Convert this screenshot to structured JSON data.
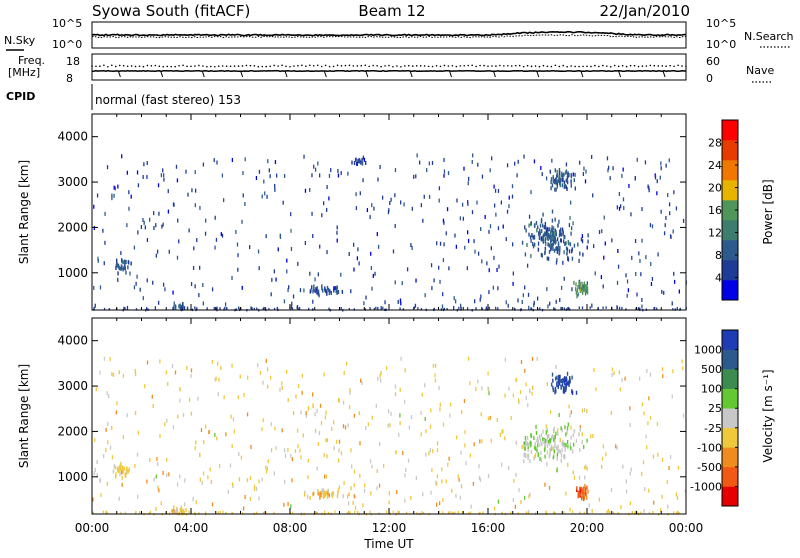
{
  "header": {
    "station": "Syowa South (fitACF)",
    "beam": "Beam 12",
    "date": "22/Jan/2010"
  },
  "nsky_panel": {
    "left_label": "N.Sky",
    "right_label": "N.Search",
    "left_ticks": [
      "10^5",
      "10^0"
    ],
    "right_ticks": [
      "10^5",
      "10^0"
    ]
  },
  "freq_panel": {
    "left_label_line1": "Freq.",
    "left_label_line2": "[MHz]",
    "right_label": "Nave",
    "left_ticks": [
      "18",
      "8"
    ],
    "right_ticks": [
      "60",
      "0"
    ]
  },
  "cpid": {
    "label": "CPID",
    "program": "normal (fast stereo) 153"
  },
  "time_axis": {
    "label": "Time UT",
    "ticks": [
      "00:00",
      "04:00",
      "08:00",
      "12:00",
      "16:00",
      "20:00",
      "00:00"
    ],
    "range_hours": [
      0,
      24
    ]
  },
  "colors": {
    "power_scale": [
      "#0000e6",
      "#1e3c96",
      "#2d5a8c",
      "#3c7d6e",
      "#50965a",
      "#e6b400",
      "#f07800",
      "#e63c00",
      "#ff0000"
    ],
    "velocity_scale": [
      "#1e3cb4",
      "#2d5a8c",
      "#3c8c50",
      "#64c832",
      "#c8c8c8",
      "#f0c83c",
      "#f08c1e",
      "#f05a14",
      "#e60000"
    ]
  },
  "chart_data": [
    {
      "type": "heatmap",
      "name": "power",
      "xlabel": "Time UT",
      "ylabel": "Slant Range [km]",
      "xlim": [
        0,
        24
      ],
      "ylim": [
        180,
        4500
      ],
      "yticks": [
        "1000",
        "2000",
        "3000",
        "4000"
      ],
      "colorbar": {
        "label": "Power [dB]",
        "range": [
          0,
          30
        ],
        "ticks": [
          "4",
          "8",
          "12",
          "16",
          "20",
          "24",
          "28"
        ]
      },
      "clusters": [
        {
          "t": 1.2,
          "r": 1200,
          "dt": 0.6,
          "dr": 250,
          "n": 30,
          "level": 0.25
        },
        {
          "t": 3.5,
          "r": 300,
          "dt": 0.5,
          "dr": 150,
          "n": 20,
          "level": 0.2
        },
        {
          "t": 9.4,
          "r": 650,
          "dt": 1.2,
          "dr": 150,
          "n": 40,
          "level": 0.2
        },
        {
          "t": 10.8,
          "r": 3500,
          "dt": 0.6,
          "dr": 150,
          "n": 15,
          "level": 0.15
        },
        {
          "t": 18.5,
          "r": 1800,
          "dt": 2.0,
          "dr": 700,
          "n": 160,
          "level": 0.25
        },
        {
          "t": 19.0,
          "r": 3100,
          "dt": 0.8,
          "dr": 350,
          "n": 60,
          "level": 0.25
        },
        {
          "t": 19.8,
          "r": 700,
          "dt": 0.5,
          "dr": 250,
          "n": 40,
          "level": 0.45
        }
      ]
    },
    {
      "type": "heatmap",
      "name": "velocity",
      "xlabel": "Time UT",
      "ylabel": "Slant Range [km]",
      "xlim": [
        0,
        24
      ],
      "ylim": [
        180,
        4500
      ],
      "yticks": [
        "1000",
        "2000",
        "3000",
        "4000"
      ],
      "colorbar": {
        "label": "Velocity [m s⁻¹]",
        "ticks": [
          "1000",
          "500",
          "100",
          "25",
          "-25",
          "-100",
          "-500",
          "-1000"
        ]
      },
      "clusters": [
        {
          "t": 1.2,
          "r": 1200,
          "dt": 0.6,
          "dr": 250,
          "n": 30,
          "level": 0.6
        },
        {
          "t": 3.5,
          "r": 300,
          "dt": 0.5,
          "dr": 150,
          "n": 20,
          "level": 0.65
        },
        {
          "t": 9.4,
          "r": 650,
          "dt": 1.2,
          "dr": 150,
          "n": 40,
          "level": 0.62
        },
        {
          "t": 18.5,
          "r": 1800,
          "dt": 2.0,
          "dr": 700,
          "n": 160,
          "level": 0.45
        },
        {
          "t": 19.0,
          "r": 3100,
          "dt": 0.8,
          "dr": 350,
          "n": 60,
          "level": 0.05
        },
        {
          "t": 19.8,
          "r": 700,
          "dt": 0.5,
          "dr": 250,
          "n": 40,
          "level": 0.85
        }
      ]
    }
  ]
}
